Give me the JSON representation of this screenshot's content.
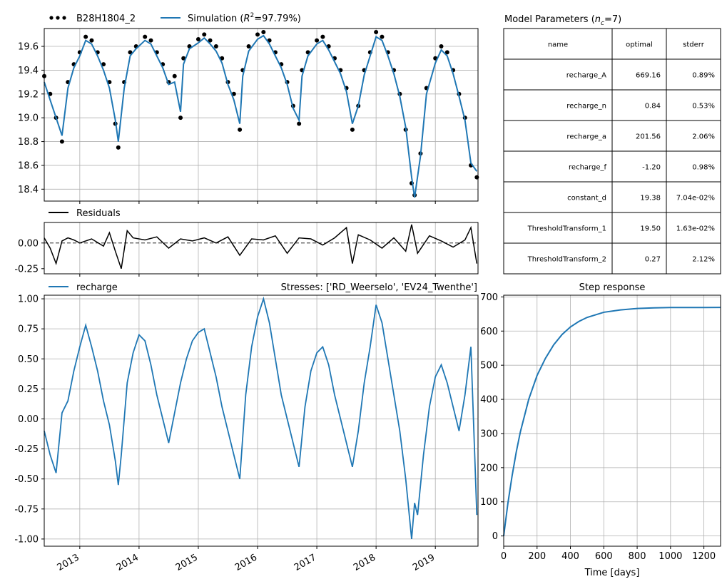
{
  "figure": {
    "colors": {
      "observed": "#000000",
      "simulation": "#1f77b4",
      "residuals": "#000000",
      "recharge": "#1f77b4",
      "step": "#1f77b4",
      "grid": "#b0b0b0"
    }
  },
  "parameters_table": {
    "title_text": "Model Parameters (",
    "title_var": "n",
    "title_sub": "c",
    "title_tail": "=7)",
    "headers": [
      "name",
      "optimal",
      "stderr"
    ],
    "rows": [
      [
        "recharge_A",
        "669.16",
        "0.89%"
      ],
      [
        "recharge_n",
        "0.84",
        "0.53%"
      ],
      [
        "recharge_a",
        "201.56",
        "2.06%"
      ],
      [
        "recharge_f",
        "-1.20",
        "0.98%"
      ],
      [
        "constant_d",
        "19.38",
        "7.04e-02%"
      ],
      [
        "ThresholdTransform_1",
        "19.50",
        "1.63e-02%"
      ],
      [
        "ThresholdTransform_2",
        "0.27",
        "2.12%"
      ]
    ]
  },
  "legends": {
    "observed": "B28H1804_2",
    "simulation_prefix": "Simulation (",
    "simulation_var": "R",
    "simulation_sup": "2",
    "simulation_suffix": "=97.79%)",
    "residuals": "Residuals",
    "recharge": "recharge"
  },
  "chart_data": [
    {
      "id": "heads",
      "type": "line",
      "xlim": [
        2012.4,
        2019.72
      ],
      "ylim": [
        18.3,
        19.75
      ],
      "yticks": [
        18.4,
        18.6,
        18.8,
        19.0,
        19.2,
        19.4,
        19.6
      ],
      "ytick_labels": [
        "18.4",
        "18.6",
        "18.8",
        "19.0",
        "19.2",
        "19.4",
        "19.6"
      ],
      "grid": true,
      "legend_placement": "top-left (outside)",
      "series": [
        {
          "name": "B28H1804_2",
          "style": "dots",
          "x": [
            2012.4,
            2012.5,
            2012.6,
            2012.7,
            2012.8,
            2012.9,
            2013.0,
            2013.1,
            2013.2,
            2013.3,
            2013.4,
            2013.5,
            2013.6,
            2013.65,
            2013.75,
            2013.85,
            2013.95,
            2014.1,
            2014.2,
            2014.3,
            2014.4,
            2014.5,
            2014.6,
            2014.7,
            2014.75,
            2014.85,
            2015.0,
            2015.1,
            2015.2,
            2015.3,
            2015.4,
            2015.5,
            2015.6,
            2015.7,
            2015.75,
            2015.85,
            2016.0,
            2016.1,
            2016.2,
            2016.3,
            2016.4,
            2016.5,
            2016.6,
            2016.7,
            2016.75,
            2016.85,
            2017.0,
            2017.1,
            2017.2,
            2017.3,
            2017.4,
            2017.5,
            2017.6,
            2017.7,
            2017.8,
            2017.9,
            2018.0,
            2018.1,
            2018.2,
            2018.3,
            2018.4,
            2018.5,
            2018.6,
            2018.65,
            2018.75,
            2018.85,
            2019.0,
            2019.1,
            2019.2,
            2019.3,
            2019.4,
            2019.5,
            2019.6,
            2019.7
          ],
          "y": [
            19.35,
            19.2,
            19.0,
            18.8,
            19.3,
            19.45,
            19.55,
            19.68,
            19.65,
            19.55,
            19.45,
            19.3,
            18.95,
            18.75,
            19.3,
            19.55,
            19.6,
            19.68,
            19.65,
            19.55,
            19.45,
            19.3,
            19.35,
            19.0,
            19.5,
            19.6,
            19.66,
            19.7,
            19.65,
            19.6,
            19.5,
            19.3,
            19.2,
            18.9,
            19.4,
            19.6,
            19.7,
            19.72,
            19.65,
            19.55,
            19.45,
            19.3,
            19.1,
            18.95,
            19.4,
            19.55,
            19.65,
            19.68,
            19.6,
            19.5,
            19.4,
            19.25,
            18.9,
            19.1,
            19.4,
            19.55,
            19.72,
            19.68,
            19.55,
            19.4,
            19.2,
            18.9,
            18.45,
            18.35,
            18.7,
            19.25,
            19.5,
            19.6,
            19.55,
            19.4,
            19.2,
            19.0,
            18.6,
            18.5
          ]
        },
        {
          "name": "Simulation",
          "style": "line",
          "x": [
            2012.4,
            2012.5,
            2012.6,
            2012.7,
            2012.8,
            2012.9,
            2013.0,
            2013.1,
            2013.2,
            2013.3,
            2013.4,
            2013.5,
            2013.6,
            2013.65,
            2013.75,
            2013.85,
            2013.95,
            2014.1,
            2014.2,
            2014.3,
            2014.4,
            2014.5,
            2014.6,
            2014.7,
            2014.75,
            2014.85,
            2015.0,
            2015.1,
            2015.2,
            2015.3,
            2015.4,
            2015.5,
            2015.6,
            2015.7,
            2015.75,
            2015.85,
            2016.0,
            2016.1,
            2016.2,
            2016.3,
            2016.4,
            2016.5,
            2016.6,
            2016.7,
            2016.75,
            2016.85,
            2017.0,
            2017.1,
            2017.2,
            2017.3,
            2017.4,
            2017.5,
            2017.6,
            2017.7,
            2017.8,
            2017.9,
            2018.0,
            2018.1,
            2018.2,
            2018.3,
            2018.4,
            2018.5,
            2018.6,
            2018.65,
            2018.75,
            2018.85,
            2019.0,
            2019.1,
            2019.2,
            2019.3,
            2019.4,
            2019.5,
            2019.6,
            2019.7
          ],
          "y": [
            19.3,
            19.15,
            19.0,
            18.85,
            19.25,
            19.42,
            19.52,
            19.65,
            19.62,
            19.52,
            19.4,
            19.25,
            18.98,
            18.8,
            19.25,
            19.52,
            19.58,
            19.65,
            19.62,
            19.52,
            19.42,
            19.28,
            19.3,
            19.05,
            19.45,
            19.58,
            19.63,
            19.67,
            19.62,
            19.56,
            19.46,
            19.28,
            19.15,
            18.95,
            19.35,
            19.56,
            19.66,
            19.69,
            19.62,
            19.52,
            19.42,
            19.28,
            19.08,
            18.98,
            19.35,
            19.52,
            19.62,
            19.65,
            19.57,
            19.47,
            19.37,
            19.22,
            18.95,
            19.1,
            19.36,
            19.52,
            19.68,
            19.65,
            19.52,
            19.37,
            19.18,
            18.92,
            18.5,
            18.33,
            18.68,
            19.2,
            19.46,
            19.57,
            19.52,
            19.37,
            19.18,
            18.98,
            18.62,
            18.55
          ]
        }
      ]
    },
    {
      "id": "residuals",
      "type": "line",
      "xlim": [
        2012.4,
        2019.72
      ],
      "ylim": [
        -0.3,
        0.2
      ],
      "yticks": [
        0.0,
        -0.25
      ],
      "ytick_labels": [
        "0.00",
        "-0.25"
      ],
      "zero_line": true,
      "series": [
        {
          "name": "Residuals",
          "x": [
            2012.4,
            2012.5,
            2012.6,
            2012.7,
            2012.8,
            2012.9,
            2013.0,
            2013.2,
            2013.4,
            2013.5,
            2013.6,
            2013.7,
            2013.8,
            2013.9,
            2014.1,
            2014.3,
            2014.5,
            2014.7,
            2014.9,
            2015.1,
            2015.3,
            2015.5,
            2015.7,
            2015.9,
            2016.1,
            2016.3,
            2016.5,
            2016.7,
            2016.9,
            2017.1,
            2017.3,
            2017.5,
            2017.6,
            2017.7,
            2017.9,
            2018.1,
            2018.3,
            2018.5,
            2018.6,
            2018.7,
            2018.9,
            2019.1,
            2019.3,
            2019.5,
            2019.6,
            2019.7
          ],
          "y": [
            0.05,
            -0.05,
            -0.2,
            0.02,
            0.05,
            0.03,
            0.0,
            0.04,
            -0.03,
            0.1,
            -0.08,
            -0.25,
            0.12,
            0.05,
            0.03,
            0.06,
            -0.05,
            0.04,
            0.02,
            0.05,
            0.0,
            0.06,
            -0.12,
            0.04,
            0.03,
            0.07,
            -0.1,
            0.05,
            0.04,
            -0.02,
            0.05,
            0.15,
            -0.2,
            0.08,
            0.03,
            -0.05,
            0.05,
            -0.08,
            0.18,
            -0.1,
            0.07,
            0.02,
            -0.04,
            0.03,
            0.15,
            -0.2
          ]
        }
      ]
    },
    {
      "id": "recharge",
      "type": "line",
      "title_right": "Stresses: ['RD_Weerselo', 'EV24_Twenthe']",
      "xlim": [
        2012.4,
        2019.72
      ],
      "ylim": [
        -1.06,
        1.03
      ],
      "yticks": [
        1.0,
        0.75,
        0.5,
        0.25,
        0.0,
        -0.25,
        -0.5,
        -0.75,
        -1.0
      ],
      "ytick_labels": [
        "1.00",
        "0.75",
        "0.50",
        "0.25",
        "0.00",
        "-0.25",
        "-0.50",
        "-0.75",
        "-1.00"
      ],
      "xticks": [
        2013,
        2014,
        2015,
        2016,
        2017,
        2018,
        2019
      ],
      "xtick_labels": [
        "2013",
        "2014",
        "2015",
        "2016",
        "2017",
        "2018",
        "2019"
      ],
      "grid": true,
      "series": [
        {
          "name": "recharge",
          "x": [
            2012.4,
            2012.5,
            2012.6,
            2012.7,
            2012.8,
            2012.9,
            2013.0,
            2013.1,
            2013.2,
            2013.3,
            2013.4,
            2013.5,
            2013.6,
            2013.65,
            2013.7,
            2013.8,
            2013.9,
            2014.0,
            2014.1,
            2014.2,
            2014.3,
            2014.4,
            2014.5,
            2014.6,
            2014.7,
            2014.8,
            2014.9,
            2015.0,
            2015.1,
            2015.2,
            2015.3,
            2015.4,
            2015.5,
            2015.6,
            2015.7,
            2015.8,
            2015.9,
            2016.0,
            2016.1,
            2016.2,
            2016.3,
            2016.4,
            2016.5,
            2016.6,
            2016.7,
            2016.8,
            2016.9,
            2017.0,
            2017.1,
            2017.2,
            2017.3,
            2017.4,
            2017.5,
            2017.6,
            2017.7,
            2017.8,
            2017.9,
            2018.0,
            2018.1,
            2018.2,
            2018.3,
            2018.4,
            2018.5,
            2018.6,
            2018.65,
            2018.7,
            2018.8,
            2018.9,
            2019.0,
            2019.1,
            2019.2,
            2019.3,
            2019.4,
            2019.5,
            2019.6,
            2019.7
          ],
          "y": [
            -0.1,
            -0.3,
            -0.45,
            0.05,
            0.15,
            0.4,
            0.6,
            0.78,
            0.6,
            0.4,
            0.15,
            -0.05,
            -0.35,
            -0.55,
            -0.3,
            0.3,
            0.55,
            0.7,
            0.65,
            0.45,
            0.2,
            0.0,
            -0.2,
            0.05,
            0.3,
            0.5,
            0.65,
            0.72,
            0.75,
            0.55,
            0.35,
            0.1,
            -0.1,
            -0.3,
            -0.5,
            0.2,
            0.6,
            0.85,
            1.0,
            0.8,
            0.5,
            0.2,
            0.0,
            -0.2,
            -0.4,
            0.1,
            0.4,
            0.55,
            0.6,
            0.45,
            0.2,
            0.0,
            -0.2,
            -0.4,
            -0.1,
            0.3,
            0.6,
            0.95,
            0.8,
            0.5,
            0.2,
            -0.1,
            -0.5,
            -1.0,
            -0.7,
            -0.8,
            -0.3,
            0.1,
            0.35,
            0.45,
            0.3,
            0.1,
            -0.1,
            0.2,
            0.6,
            -0.8
          ]
        }
      ]
    },
    {
      "id": "step_response",
      "type": "line",
      "title": "Step response",
      "xlabel": "Time [days]",
      "xlim": [
        0,
        1300
      ],
      "ylim": [
        -30,
        705
      ],
      "xticks": [
        0,
        200,
        400,
        600,
        800,
        1000,
        1200
      ],
      "xtick_labels": [
        "0",
        "200",
        "400",
        "600",
        "800",
        "1000",
        "1200"
      ],
      "yticks": [
        0,
        100,
        200,
        300,
        400,
        500,
        600,
        700
      ],
      "ytick_labels": [
        "0",
        "100",
        "200",
        "300",
        "400",
        "500",
        "600",
        "700"
      ],
      "grid": true,
      "series": [
        {
          "name": "Step response",
          "x": [
            0,
            25,
            50,
            75,
            100,
            150,
            200,
            250,
            300,
            350,
            400,
            450,
            500,
            600,
            700,
            800,
            900,
            1000,
            1100,
            1200,
            1300
          ],
          "y": [
            0,
            95,
            175,
            245,
            305,
            400,
            470,
            520,
            560,
            590,
            612,
            628,
            640,
            655,
            662,
            666,
            668,
            669,
            669,
            669.1,
            669.2
          ]
        }
      ]
    }
  ]
}
